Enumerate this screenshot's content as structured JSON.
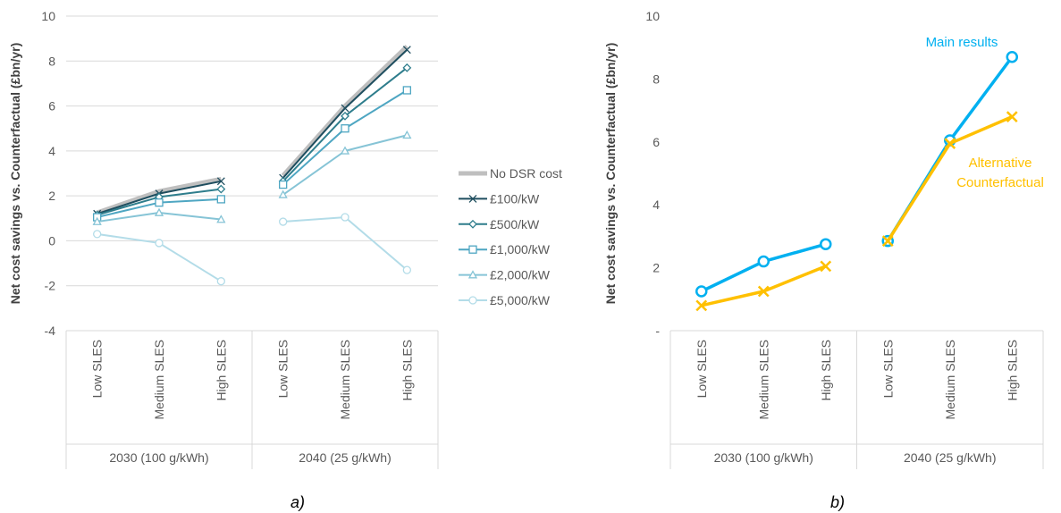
{
  "chart_data": [
    {
      "type": "line",
      "caption": "a)",
      "ylabel": "Net cost savings vs. Counterfactual (£bn/yr)",
      "ylim": [
        -4,
        10
      ],
      "yticks": [
        -4,
        -2,
        0,
        2,
        4,
        6,
        8,
        10
      ],
      "ytick_labels": [
        "-4",
        "-2",
        "0",
        "2",
        "4",
        "6",
        "8",
        "10"
      ],
      "grid": true,
      "legend_position": "right",
      "groups": [
        {
          "label": "2030 (100 g/kWh)",
          "categories": [
            "Low SLES",
            "Medium SLES",
            "High SLES"
          ]
        },
        {
          "label": "2040 (25 g/kWh)",
          "categories": [
            "Low SLES",
            "Medium SLES",
            "High SLES"
          ]
        }
      ],
      "series": [
        {
          "name": "No DSR cost",
          "color": "#bfbfbf",
          "marker": "none",
          "values": [
            [
              1.25,
              2.2,
              2.75
            ],
            [
              2.9,
              6.0,
              8.65
            ]
          ]
        },
        {
          "name": "£100/kW",
          "color": "#1f4e5f",
          "marker": "x",
          "values": [
            [
              1.2,
              2.1,
              2.65
            ],
            [
              2.8,
              5.9,
              8.5
            ]
          ]
        },
        {
          "name": "£500/kW",
          "color": "#2e7d8c",
          "marker": "diamond",
          "values": [
            [
              1.15,
              1.95,
              2.3
            ],
            [
              2.65,
              5.55,
              7.7
            ]
          ]
        },
        {
          "name": "£1,000/kW",
          "color": "#4ea6c2",
          "marker": "square",
          "values": [
            [
              1.05,
              1.7,
              1.85
            ],
            [
              2.5,
              5.0,
              6.7
            ]
          ]
        },
        {
          "name": "£2,000/kW",
          "color": "#86c4d6",
          "marker": "triangle",
          "values": [
            [
              0.85,
              1.25,
              0.95
            ],
            [
              2.05,
              4.0,
              4.7
            ]
          ]
        },
        {
          "name": "£5,000/kW",
          "color": "#b3dce8",
          "marker": "circle",
          "values": [
            [
              0.3,
              -0.1,
              -1.8
            ],
            [
              0.85,
              1.05,
              -1.3
            ]
          ]
        }
      ]
    },
    {
      "type": "line",
      "caption": "b)",
      "ylabel": "Net cost savings vs. Counterfactual (£bn/yr)",
      "ylim": [
        0,
        10
      ],
      "yticks": [
        0,
        2,
        4,
        6,
        8,
        10
      ],
      "ytick_labels": [
        "-",
        "2",
        "4",
        "6",
        "8",
        "10"
      ],
      "grid": false,
      "groups": [
        {
          "label": "2030 (100 g/kWh)",
          "categories": [
            "Low SLES",
            "Medium SLES",
            "High SLES"
          ]
        },
        {
          "label": "2040 (25 g/kWh)",
          "categories": [
            "Low SLES",
            "Medium SLES",
            "High SLES"
          ]
        }
      ],
      "series": [
        {
          "name": "Main results",
          "color": "#00b0f0",
          "marker": "circle",
          "values": [
            [
              1.25,
              2.2,
              2.75
            ],
            [
              2.85,
              6.05,
              8.7
            ]
          ]
        },
        {
          "name": "Alternative Counterfactual",
          "name_lines": [
            "Alternative",
            "Counterfactual"
          ],
          "color": "#ffc000",
          "marker": "x",
          "values": [
            [
              0.8,
              1.25,
              2.05
            ],
            [
              2.85,
              5.95,
              6.8
            ]
          ]
        }
      ]
    }
  ]
}
